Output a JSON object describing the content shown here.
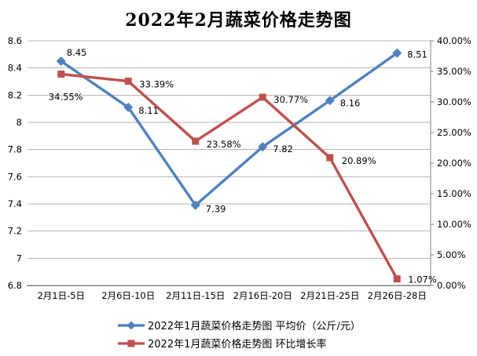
{
  "title": "2022年2月蔬菜价格走势图",
  "chart_data": {
    "type": "line",
    "title": "2022年2月蔬菜价格走势图",
    "categories": [
      "2月1日-5日",
      "2月6日-10日",
      "2月11日-15日",
      "2月16日-20日",
      "2月21日-25日",
      "2月26日-28日"
    ],
    "series": [
      {
        "name": "2022年1月蔬菜价格走势图 平均价（公斤/元）",
        "axis": "left",
        "color": "#4F81BD",
        "marker": "diamond",
        "values": [
          8.45,
          8.11,
          7.39,
          7.82,
          8.16,
          8.51
        ],
        "labels": [
          "8.45",
          "8.11",
          "7.39",
          "7.82",
          "8.16",
          "8.51"
        ],
        "label_offsets": [
          [
            7,
            -7
          ],
          [
            13,
            8
          ],
          [
            13,
            9
          ],
          [
            13,
            7
          ],
          [
            13,
            7
          ],
          [
            13,
            6
          ]
        ]
      },
      {
        "name": "2022年1月蔬菜价格走势图 环比增长率",
        "axis": "right",
        "color": "#C0504D",
        "marker": "square",
        "values": [
          34.55,
          33.39,
          23.58,
          30.77,
          20.89,
          1.07
        ],
        "labels": [
          "34.55%",
          "33.39%",
          "23.58%",
          "30.77%",
          "20.89%",
          "1.07%"
        ],
        "label_offsets": [
          [
            -16,
            33
          ],
          [
            14,
            8
          ],
          [
            14,
            8
          ],
          [
            14,
            7
          ],
          [
            15,
            8
          ],
          [
            14,
            5
          ]
        ]
      }
    ],
    "left_axis": {
      "min": 6.8,
      "max": 8.6,
      "step": 0.2,
      "ticks": [
        "8.6",
        "8.4",
        "8.2",
        "8",
        "7.8",
        "7.6",
        "7.4",
        "7.2",
        "7",
        "6.8"
      ]
    },
    "right_axis": {
      "min": 0,
      "max": 40,
      "step": 5,
      "ticks": [
        "40.00%",
        "35.00%",
        "30.00%",
        "25.00%",
        "20.00%",
        "15.00%",
        "10.00%",
        "5.00%",
        "0.00%"
      ]
    },
    "grid": true,
    "legend_position": "bottom"
  },
  "colors": {
    "gridline": "#B6B6B6",
    "axis_line": "#808080",
    "label_text": "#000000",
    "background": "#FFFFFF"
  }
}
